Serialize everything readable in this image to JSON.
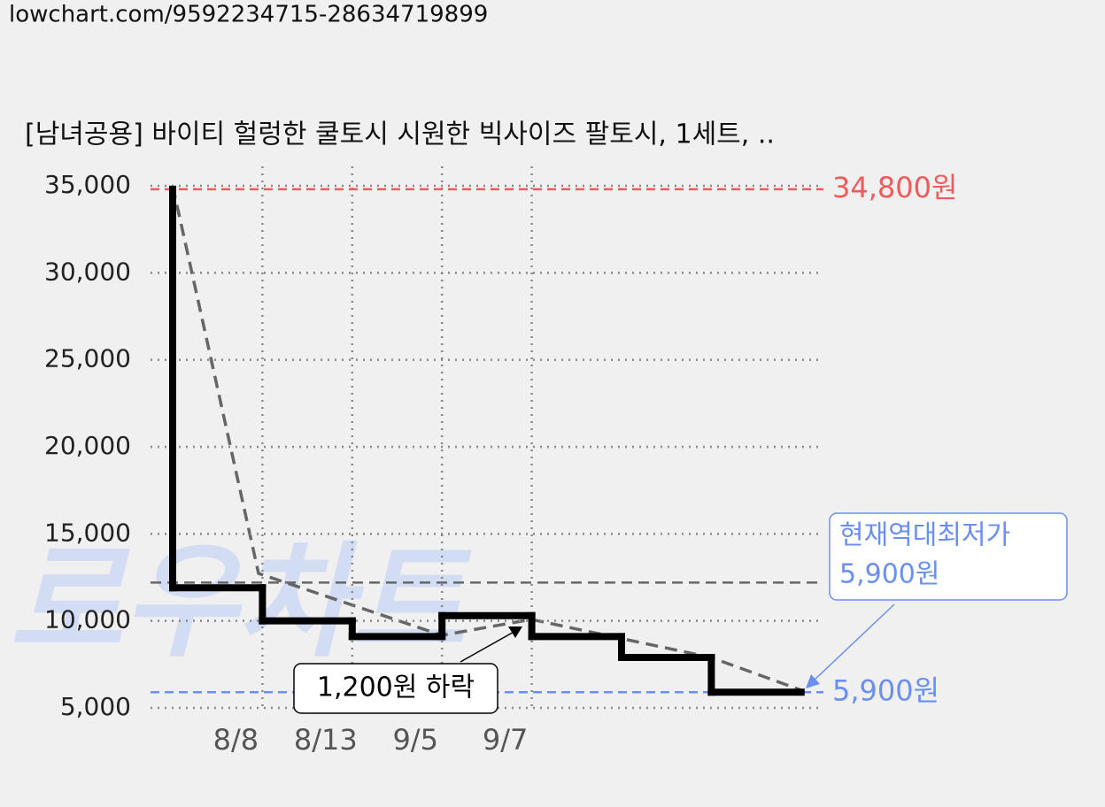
{
  "url": "lowchart.com/9592234715-28634719899",
  "watermark": "로우차트",
  "chart_data": {
    "type": "step",
    "title": "[남녀공용] 바이티 헐렁한 쿨토시 시원한 빅사이즈 팔토시, 1세트, ..",
    "categories": [
      null,
      "8/8",
      "8/13",
      "9/5",
      "9/7",
      null,
      null,
      null
    ],
    "values": [
      34800,
      11900,
      10000,
      9100,
      10300,
      9100,
      7900,
      5900
    ],
    "color": "#000000",
    "ylim": [
      5000,
      35000
    ],
    "yticks": [
      {
        "value": 5000,
        "label": "5,000"
      },
      {
        "value": 10000,
        "label": "10,000"
      },
      {
        "value": 15000,
        "label": "15,000"
      },
      {
        "value": 20000,
        "label": "20,000"
      },
      {
        "value": 25000,
        "label": "25,000"
      },
      {
        "value": 30000,
        "label": "30,000"
      },
      {
        "value": 35000,
        "label": "35,000"
      }
    ],
    "grid": true,
    "max_line": {
      "value": 34800,
      "label": "34,800원",
      "color": "#f05a5a"
    },
    "min_line": {
      "value": 5900,
      "label": "5,900원",
      "color": "#6b8ff0"
    },
    "average_line": {
      "value": 12200,
      "color": "#666666"
    },
    "annotations": [
      {
        "lines": [
          "현재역대최저가",
          "5,900원"
        ],
        "color": "#6b8ff0"
      },
      {
        "text": "1,200원 하락",
        "color": "#000000"
      }
    ]
  }
}
